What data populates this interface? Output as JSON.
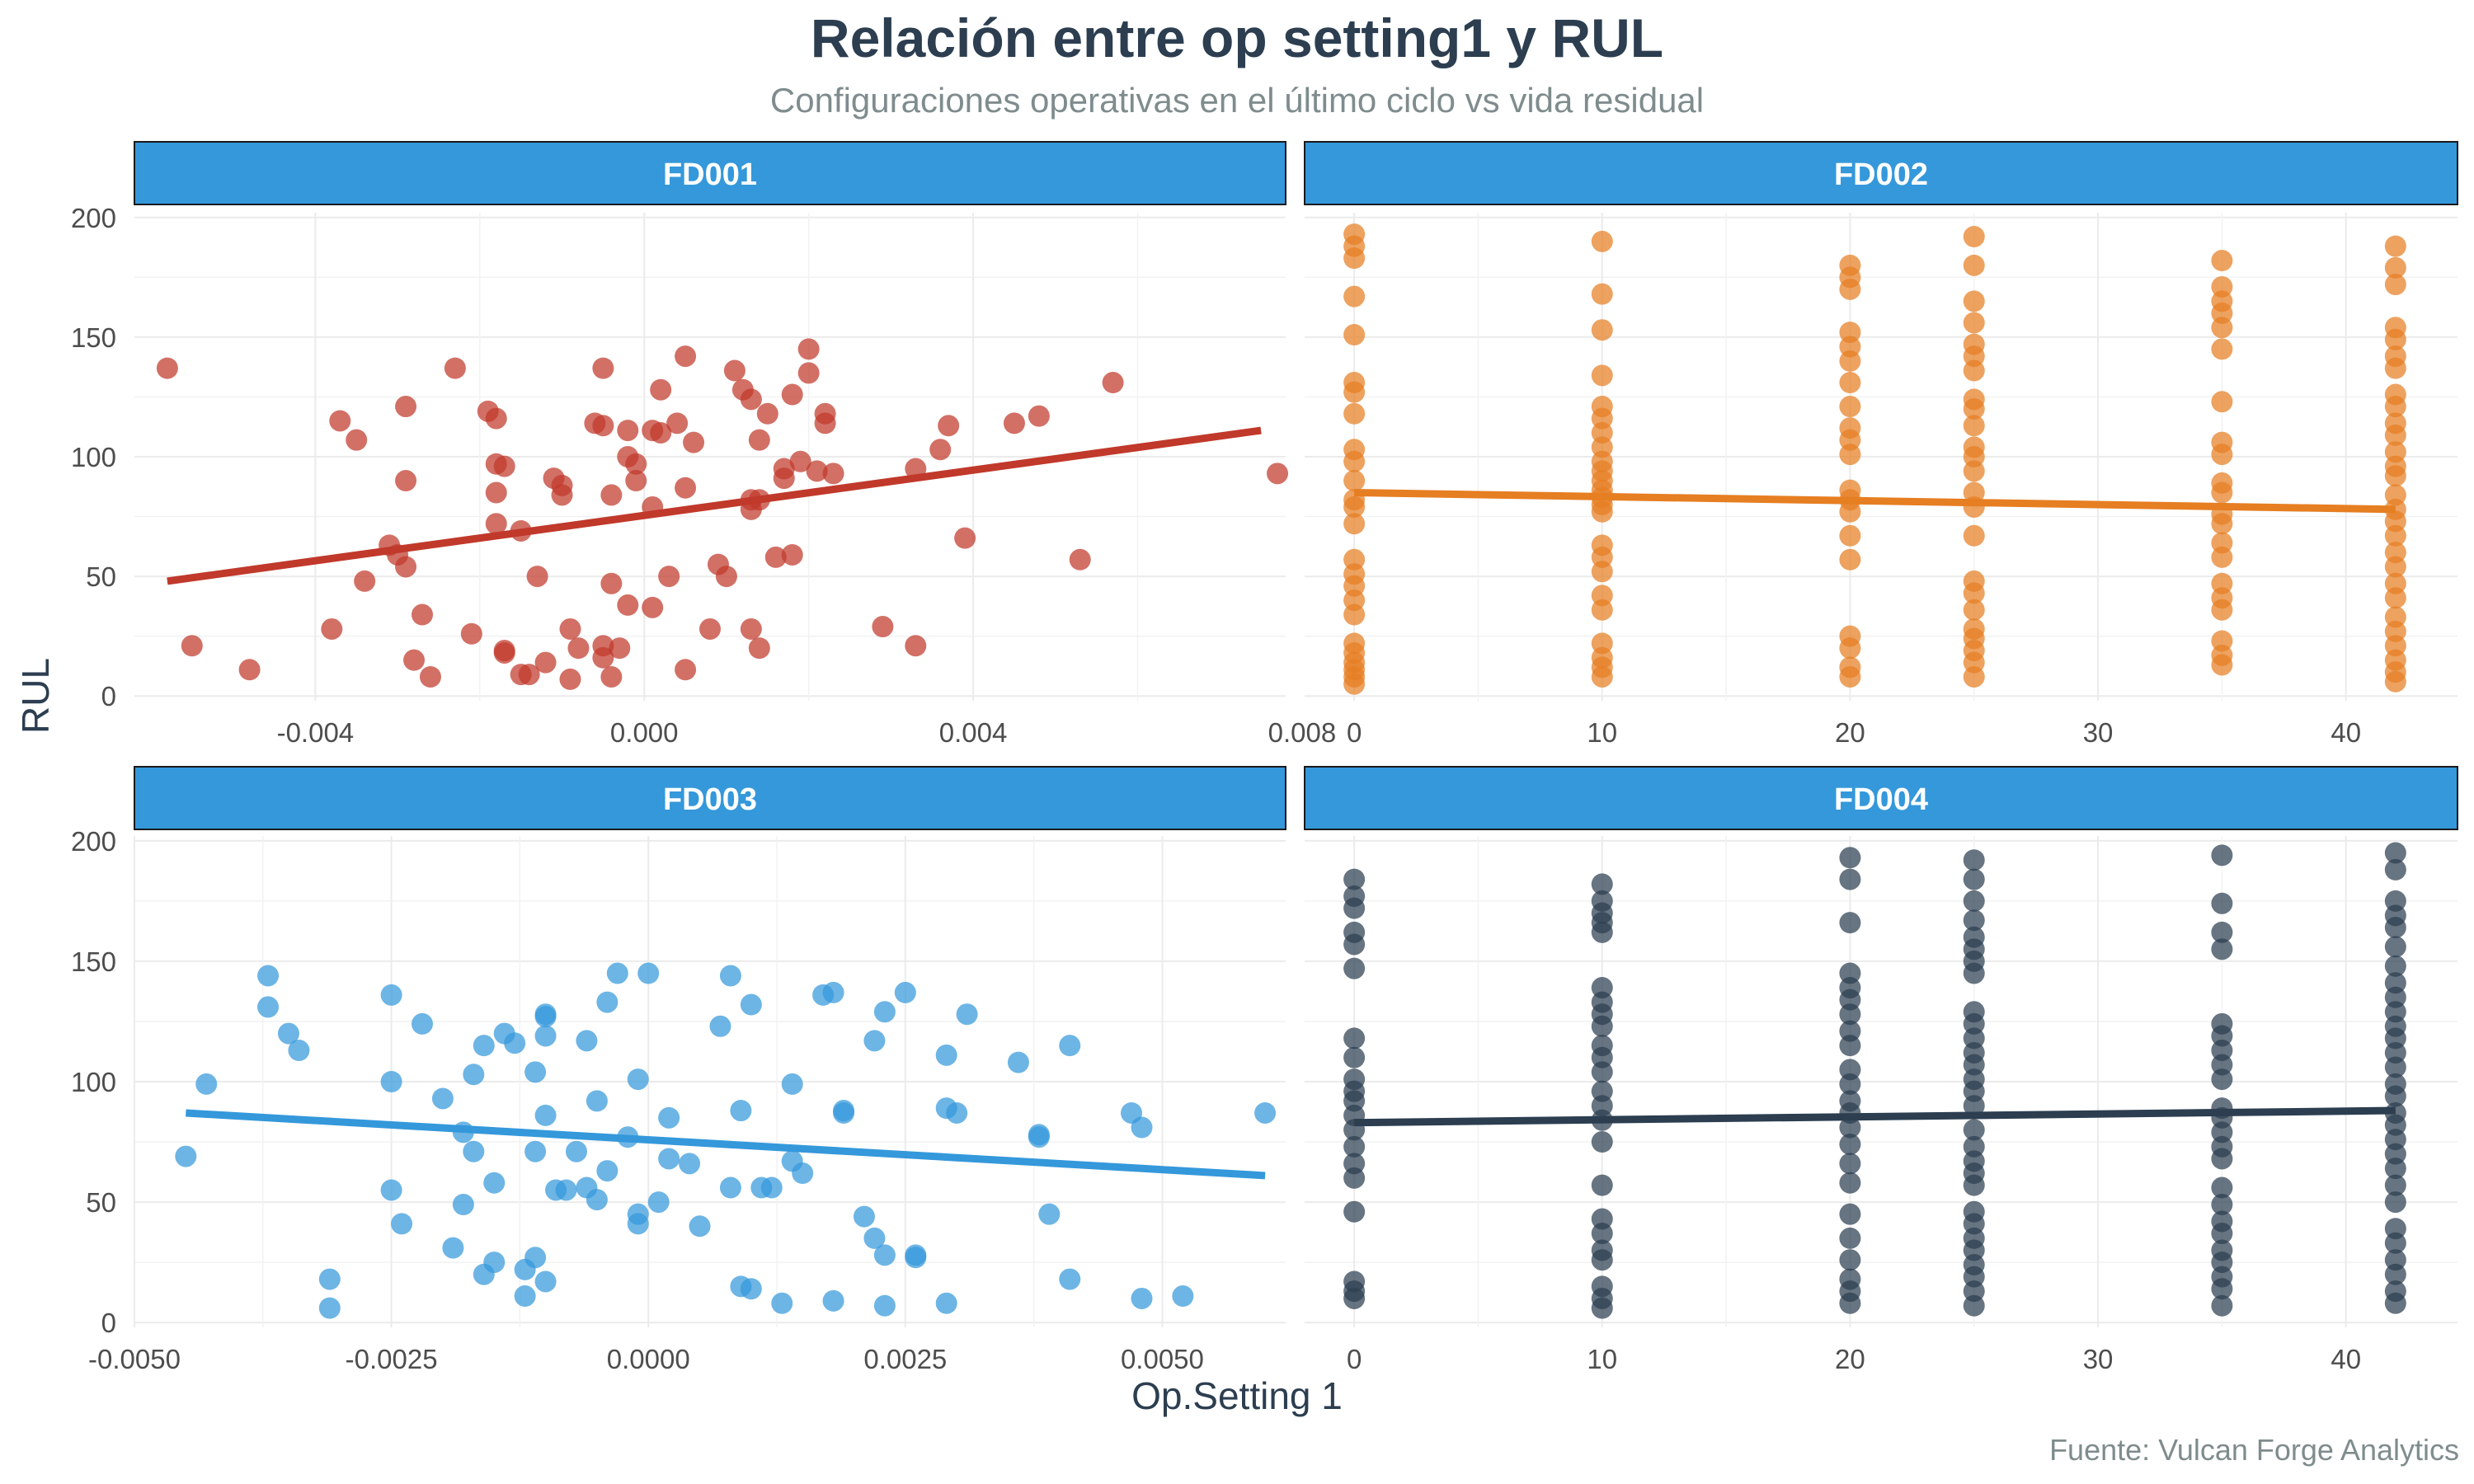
{
  "title": "Relación entre op setting1 y RUL",
  "subtitle": "Configuraciones operativas en el último ciclo vs vida residual",
  "caption": "Fuente: Vulcan Forge Analytics",
  "xlabel": "Op.Setting 1",
  "ylabel": "RUL",
  "colors": {
    "strip_bg": "#3498db",
    "strip_text": "#ffffff",
    "grid": "#ebebeb",
    "tick_text": "#4d4d4d"
  },
  "chart_data": [
    {
      "type": "scatter",
      "panel": "FD001",
      "color": "#c0392b",
      "xlim": [
        -0.0062,
        0.0078
      ],
      "ylim": [
        -2,
        202
      ],
      "xticks": [
        -0.004,
        0.0,
        0.004,
        0.008
      ],
      "xtick_labels": [
        "-0.004",
        "0.000",
        "0.004",
        "0.008"
      ],
      "yticks": [
        0,
        50,
        100,
        150,
        200
      ],
      "ytick_labels": [
        "0",
        "50",
        "100",
        "150",
        "200"
      ],
      "trend": {
        "x": [
          -0.0058,
          0.0075
        ],
        "y": [
          48,
          111
        ]
      },
      "points": [
        [
          -0.0058,
          137
        ],
        [
          -0.0055,
          21
        ],
        [
          -0.0048,
          11
        ],
        [
          -0.0038,
          28
        ],
        [
          -0.0037,
          115
        ],
        [
          -0.0035,
          107
        ],
        [
          -0.0034,
          48
        ],
        [
          -0.0031,
          63
        ],
        [
          -0.003,
          59
        ],
        [
          -0.0029,
          121
        ],
        [
          -0.0029,
          90
        ],
        [
          -0.0029,
          54
        ],
        [
          -0.0028,
          15
        ],
        [
          -0.0027,
          34
        ],
        [
          -0.0026,
          8
        ],
        [
          -0.0023,
          137
        ],
        [
          -0.0021,
          26
        ],
        [
          -0.0019,
          119
        ],
        [
          -0.0018,
          116
        ],
        [
          -0.0018,
          97
        ],
        [
          -0.0018,
          85
        ],
        [
          -0.0018,
          72
        ],
        [
          -0.0017,
          96
        ],
        [
          -0.0017,
          18
        ],
        [
          -0.0017,
          19
        ],
        [
          -0.0015,
          69
        ],
        [
          -0.0015,
          9
        ],
        [
          -0.0014,
          9
        ],
        [
          -0.0013,
          50
        ],
        [
          -0.0012,
          14
        ],
        [
          -0.0011,
          91
        ],
        [
          -0.001,
          88
        ],
        [
          -0.001,
          84
        ],
        [
          -0.0009,
          7
        ],
        [
          -0.0009,
          28
        ],
        [
          -0.0008,
          20
        ],
        [
          -0.0006,
          114
        ],
        [
          -0.0005,
          137
        ],
        [
          -0.0005,
          113
        ],
        [
          -0.0005,
          21
        ],
        [
          -0.0005,
          16
        ],
        [
          -0.0004,
          47
        ],
        [
          -0.0004,
          84
        ],
        [
          -0.0004,
          8
        ],
        [
          -0.0003,
          20
        ],
        [
          -0.0002,
          111
        ],
        [
          -0.0002,
          100
        ],
        [
          -0.0002,
          38
        ],
        [
          -0.0001,
          90
        ],
        [
          -0.0001,
          97
        ],
        [
          0.0001,
          111
        ],
        [
          0.0001,
          79
        ],
        [
          0.0001,
          37
        ],
        [
          0.0002,
          128
        ],
        [
          0.0002,
          110
        ],
        [
          0.0003,
          50
        ],
        [
          0.0004,
          114
        ],
        [
          0.0005,
          142
        ],
        [
          0.0005,
          87
        ],
        [
          0.0005,
          11
        ],
        [
          0.0006,
          106
        ],
        [
          0.0008,
          28
        ],
        [
          0.0009,
          55
        ],
        [
          0.001,
          50
        ],
        [
          0.0011,
          136
        ],
        [
          0.0012,
          128
        ],
        [
          0.0013,
          82
        ],
        [
          0.0013,
          78
        ],
        [
          0.0013,
          28
        ],
        [
          0.0013,
          124
        ],
        [
          0.0014,
          107
        ],
        [
          0.0014,
          82
        ],
        [
          0.0014,
          20
        ],
        [
          0.0015,
          118
        ],
        [
          0.0016,
          58
        ],
        [
          0.0017,
          95
        ],
        [
          0.0017,
          91
        ],
        [
          0.0018,
          126
        ],
        [
          0.0018,
          59
        ],
        [
          0.0019,
          98
        ],
        [
          0.002,
          145
        ],
        [
          0.002,
          135
        ],
        [
          0.0021,
          94
        ],
        [
          0.0022,
          118
        ],
        [
          0.0022,
          114
        ],
        [
          0.0023,
          93
        ],
        [
          0.0029,
          29
        ],
        [
          0.0033,
          95
        ],
        [
          0.0033,
          21
        ],
        [
          0.0036,
          103
        ],
        [
          0.0037,
          113
        ],
        [
          0.0039,
          66
        ],
        [
          0.0045,
          114
        ],
        [
          0.0048,
          117
        ],
        [
          0.0053,
          57
        ],
        [
          0.0057,
          131
        ],
        [
          0.0077,
          93
        ]
      ]
    },
    {
      "type": "scatter",
      "panel": "FD002",
      "color": "#e67e22",
      "xlim": [
        -2,
        44.5
      ],
      "ylim": [
        -2,
        202
      ],
      "xticks": [
        0,
        10,
        20,
        30,
        40
      ],
      "xtick_labels": [
        "0",
        "10",
        "20",
        "30",
        "40"
      ],
      "yticks": [
        0,
        50,
        100,
        150,
        200
      ],
      "ytick_labels": [
        "0",
        "50",
        "100",
        "150",
        "200"
      ],
      "trend": {
        "x": [
          0,
          42
        ],
        "y": [
          85,
          78
        ]
      },
      "columns": [
        {
          "x": 0,
          "ys": [
            193,
            188,
            183,
            167,
            151,
            131,
            127,
            118,
            103,
            98,
            90,
            82,
            79,
            72,
            57,
            51,
            46,
            40,
            34,
            22,
            18,
            14,
            11,
            8,
            5
          ]
        },
        {
          "x": 10,
          "ys": [
            190,
            168,
            153,
            134,
            121,
            116,
            110,
            104,
            98,
            94,
            90,
            86,
            83,
            80,
            77,
            63,
            58,
            52,
            42,
            36,
            22,
            16,
            12,
            8
          ]
        },
        {
          "x": 20,
          "ys": [
            180,
            175,
            170,
            152,
            146,
            140,
            131,
            121,
            112,
            107,
            101,
            86,
            82,
            77,
            67,
            57,
            25,
            20,
            12,
            8
          ]
        },
        {
          "x": 25,
          "ys": [
            192,
            180,
            165,
            156,
            147,
            142,
            136,
            124,
            120,
            113,
            104,
            100,
            94,
            85,
            79,
            67,
            48,
            43,
            36,
            28,
            24,
            19,
            14,
            8
          ]
        },
        {
          "x": 35,
          "ys": [
            182,
            171,
            165,
            160,
            154,
            145,
            123,
            106,
            101,
            89,
            85,
            76,
            72,
            64,
            58,
            47,
            41,
            36,
            23,
            17,
            13
          ]
        },
        {
          "x": 42,
          "ys": [
            188,
            179,
            172,
            154,
            149,
            142,
            137,
            126,
            121,
            114,
            109,
            102,
            96,
            92,
            84,
            78,
            73,
            67,
            60,
            54,
            47,
            41,
            33,
            27,
            21,
            15,
            10,
            6
          ]
        }
      ]
    },
    {
      "type": "scatter",
      "panel": "FD003",
      "color": "#3498db",
      "xlim": [
        -0.005,
        0.0062
      ],
      "ylim": [
        -2,
        202
      ],
      "xticks": [
        -0.005,
        -0.0025,
        0.0,
        0.0025,
        0.005
      ],
      "xtick_labels": [
        "-0.0050",
        "-0.0025",
        "0.0000",
        "0.0025",
        "0.0050"
      ],
      "yticks": [
        0,
        50,
        100,
        150,
        200
      ],
      "ytick_labels": [
        "0",
        "50",
        "100",
        "150",
        "200"
      ],
      "trend": {
        "x": [
          -0.0045,
          0.006
        ],
        "y": [
          87,
          61
        ]
      },
      "points": [
        [
          -0.0045,
          69
        ],
        [
          -0.0043,
          99
        ],
        [
          -0.0037,
          144
        ],
        [
          -0.0037,
          131
        ],
        [
          -0.0035,
          120
        ],
        [
          -0.0034,
          113
        ],
        [
          -0.0031,
          18
        ],
        [
          -0.0031,
          6
        ],
        [
          -0.0025,
          136
        ],
        [
          -0.0025,
          100
        ],
        [
          -0.0025,
          55
        ],
        [
          -0.0024,
          41
        ],
        [
          -0.0022,
          124
        ],
        [
          -0.002,
          93
        ],
        [
          -0.0019,
          31
        ],
        [
          -0.0018,
          79
        ],
        [
          -0.0018,
          49
        ],
        [
          -0.0017,
          103
        ],
        [
          -0.0017,
          71
        ],
        [
          -0.0016,
          115
        ],
        [
          -0.0016,
          20
        ],
        [
          -0.0015,
          58
        ],
        [
          -0.0015,
          25
        ],
        [
          -0.0014,
          120
        ],
        [
          -0.0013,
          116
        ],
        [
          -0.0012,
          22
        ],
        [
          -0.0012,
          11
        ],
        [
          -0.0011,
          104
        ],
        [
          -0.0011,
          71
        ],
        [
          -0.0011,
          27
        ],
        [
          -0.001,
          119
        ],
        [
          -0.001,
          127
        ],
        [
          -0.001,
          128
        ],
        [
          -0.001,
          86
        ],
        [
          -0.001,
          17
        ],
        [
          -0.0009,
          55
        ],
        [
          -0.0008,
          55
        ],
        [
          -0.0007,
          71
        ],
        [
          -0.0006,
          56
        ],
        [
          -0.0006,
          117
        ],
        [
          -0.0005,
          92
        ],
        [
          -0.0005,
          51
        ],
        [
          -0.0004,
          133
        ],
        [
          -0.0004,
          63
        ],
        [
          -0.0003,
          145
        ],
        [
          -0.0002,
          77
        ],
        [
          -0.0001,
          101
        ],
        [
          -0.0001,
          45
        ],
        [
          -0.0001,
          41
        ],
        [
          0.0,
          145
        ],
        [
          0.0001,
          50
        ],
        [
          0.0002,
          85
        ],
        [
          0.0002,
          68
        ],
        [
          0.0004,
          66
        ],
        [
          0.0005,
          40
        ],
        [
          0.0007,
          123
        ],
        [
          0.0008,
          144
        ],
        [
          0.0008,
          56
        ],
        [
          0.0009,
          88
        ],
        [
          0.0009,
          15
        ],
        [
          0.001,
          132
        ],
        [
          0.001,
          14
        ],
        [
          0.0011,
          56
        ],
        [
          0.0012,
          56
        ],
        [
          0.0013,
          8
        ],
        [
          0.0014,
          99
        ],
        [
          0.0014,
          67
        ],
        [
          0.0015,
          62
        ],
        [
          0.0017,
          136
        ],
        [
          0.0018,
          137
        ],
        [
          0.0018,
          9
        ],
        [
          0.0019,
          88
        ],
        [
          0.0019,
          87
        ],
        [
          0.0021,
          44
        ],
        [
          0.0022,
          117
        ],
        [
          0.0022,
          35
        ],
        [
          0.0023,
          7
        ],
        [
          0.0023,
          129
        ],
        [
          0.0023,
          28
        ],
        [
          0.0025,
          137
        ],
        [
          0.0026,
          28
        ],
        [
          0.0026,
          27
        ],
        [
          0.0029,
          111
        ],
        [
          0.0029,
          89
        ],
        [
          0.0029,
          8
        ],
        [
          0.003,
          87
        ],
        [
          0.0031,
          128
        ],
        [
          0.0036,
          108
        ],
        [
          0.0038,
          78
        ],
        [
          0.0038,
          77
        ],
        [
          0.0039,
          45
        ],
        [
          0.0041,
          115
        ],
        [
          0.0041,
          18
        ],
        [
          0.0047,
          87
        ],
        [
          0.0048,
          81
        ],
        [
          0.0048,
          10
        ],
        [
          0.0052,
          11
        ],
        [
          0.006,
          87
        ]
      ]
    },
    {
      "type": "scatter",
      "panel": "FD004",
      "color": "#2c3e50",
      "xlim": [
        -2,
        44.5
      ],
      "ylim": [
        -2,
        202
      ],
      "xticks": [
        0,
        10,
        20,
        30,
        40
      ],
      "xtick_labels": [
        "0",
        "10",
        "20",
        "30",
        "40"
      ],
      "yticks": [
        0,
        50,
        100,
        150,
        200
      ],
      "ytick_labels": [
        "0",
        "50",
        "100",
        "150",
        "200"
      ],
      "trend": {
        "x": [
          0,
          42
        ],
        "y": [
          83,
          88
        ]
      },
      "columns": [
        {
          "x": 0,
          "ys": [
            184,
            177,
            172,
            162,
            157,
            147,
            118,
            110,
            101,
            96,
            92,
            86,
            80,
            73,
            66,
            60,
            46,
            17,
            13,
            10
          ]
        },
        {
          "x": 10,
          "ys": [
            182,
            175,
            170,
            166,
            162,
            139,
            133,
            128,
            123,
            115,
            110,
            104,
            96,
            90,
            84,
            75,
            57,
            43,
            37,
            30,
            26,
            15,
            10,
            6
          ]
        },
        {
          "x": 20,
          "ys": [
            193,
            184,
            166,
            145,
            139,
            134,
            128,
            121,
            115,
            105,
            99,
            92,
            87,
            81,
            74,
            66,
            58,
            45,
            35,
            26,
            18,
            13,
            8
          ]
        },
        {
          "x": 25,
          "ys": [
            192,
            184,
            175,
            167,
            160,
            155,
            150,
            145,
            129,
            124,
            118,
            112,
            107,
            101,
            96,
            90,
            80,
            73,
            67,
            62,
            57,
            46,
            41,
            35,
            30,
            24,
            19,
            13,
            7
          ]
        },
        {
          "x": 35,
          "ys": [
            194,
            174,
            162,
            155,
            124,
            119,
            113,
            107,
            101,
            89,
            85,
            79,
            73,
            68,
            56,
            49,
            42,
            37,
            30,
            25,
            19,
            14,
            7
          ]
        },
        {
          "x": 42,
          "ys": [
            195,
            188,
            175,
            169,
            164,
            156,
            148,
            141,
            135,
            129,
            123,
            118,
            112,
            106,
            99,
            94,
            87,
            82,
            76,
            70,
            64,
            57,
            50,
            39,
            33,
            26,
            20,
            13,
            8
          ]
        }
      ]
    }
  ]
}
